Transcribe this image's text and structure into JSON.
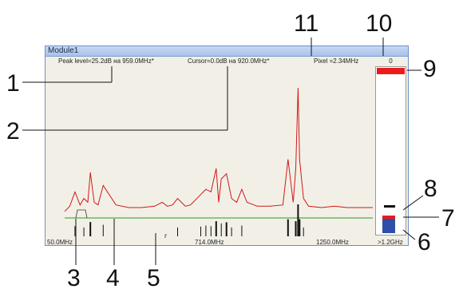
{
  "window": {
    "title": "Module1"
  },
  "info": {
    "peak": "Peak level=25.2dB на 959.0MHz*",
    "cursor": "Cursor=0.0dB на 920.0MHz*",
    "pixel": "Pixel =2.34MHz"
  },
  "axis": {
    "left": "50.0MHz",
    "mid": "714.0MHz",
    "right": "1250.0MHz",
    "over": ">1.2GHz"
  },
  "meter": {
    "top_value": "0"
  },
  "callouts": [
    "1",
    "2",
    "3",
    "4",
    "5",
    "6",
    "7",
    "8",
    "9",
    "10",
    "11"
  ],
  "colors": {
    "spectrum": "#d01818",
    "threshold": "#2a9a2a",
    "bars": "#111111",
    "meter_top": "#e81c1c",
    "meter_blue": "#2d4fa8"
  },
  "chart_data": {
    "type": "line",
    "x_range": [
      50.0,
      1250.0
    ],
    "series": [
      {
        "x": [
          50,
          70,
          90,
          110,
          125,
          140,
          150,
          165,
          180,
          200,
          250,
          300,
          350,
          400,
          430,
          450,
          470,
          490,
          520,
          540,
          580,
          600,
          620,
          640,
          650,
          660,
          680,
          700,
          720,
          740,
          760,
          800,
          850,
          900,
          920,
          940,
          950,
          959,
          965,
          980,
          1000,
          1050,
          1100,
          1150,
          1200,
          1250
        ],
        "y": [
          0.05,
          0.09,
          0.2,
          0.1,
          0.15,
          0.12,
          0.35,
          0.12,
          0.1,
          0.25,
          0.1,
          0.08,
          0.08,
          0.09,
          0.12,
          0.09,
          0.1,
          0.15,
          0.09,
          0.1,
          0.18,
          0.22,
          0.2,
          0.38,
          0.12,
          0.3,
          0.34,
          0.15,
          0.12,
          0.22,
          0.12,
          0.09,
          0.09,
          0.1,
          0.45,
          0.12,
          0.38,
          1.0,
          0.45,
          0.15,
          0.09,
          0.08,
          0.09,
          0.08,
          0.08,
          0.08
        ]
      }
    ],
    "grid": false,
    "legend": "none"
  }
}
